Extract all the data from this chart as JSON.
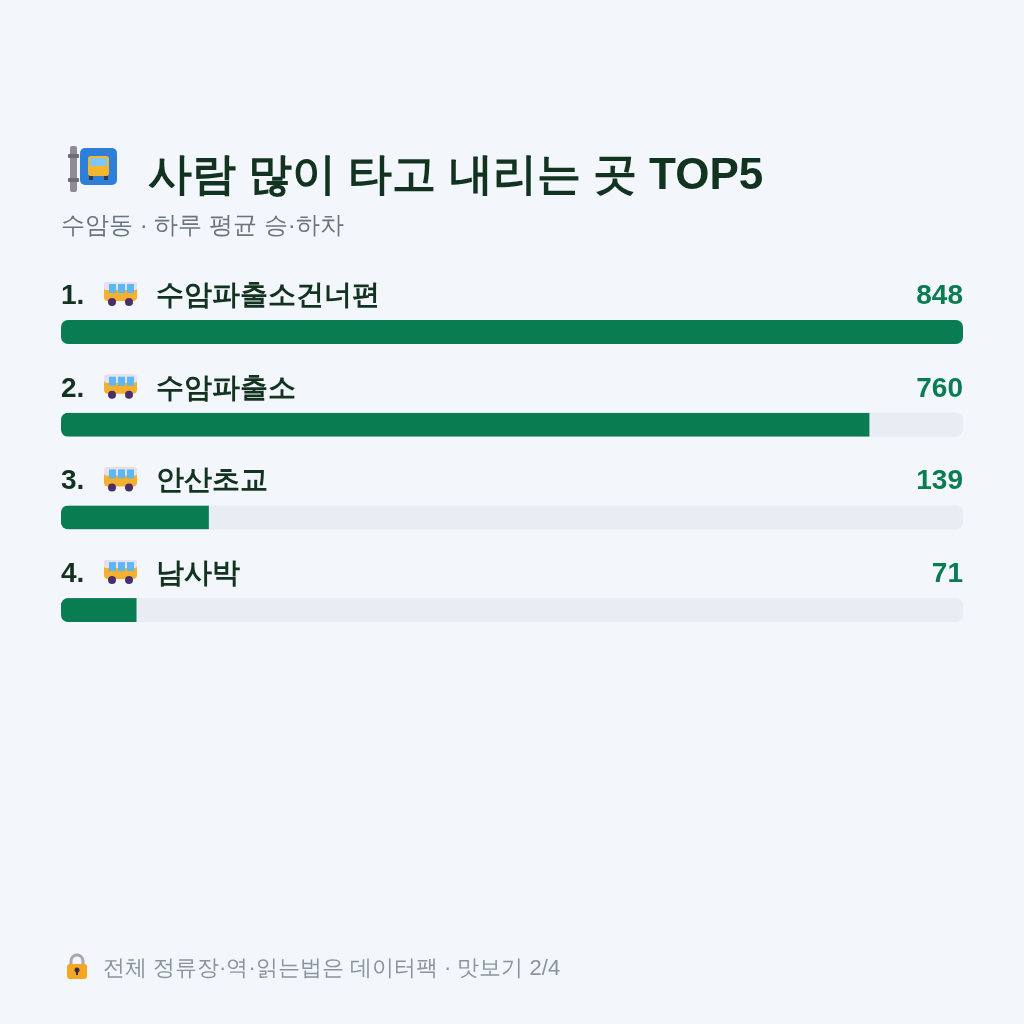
{
  "chart_data": {
    "type": "bar",
    "orientation": "horizontal",
    "title": "사람 많이 타고 내리는 곳 TOP5",
    "subtitle": "수암동 · 하루 평균 승·하차",
    "categories": [
      "1. 수암파출소건너편",
      "2. 수암파출소",
      "3. 안산초교",
      "4. 남사박"
    ],
    "values": [
      848,
      760,
      139,
      71
    ],
    "color": "#0a7c52",
    "data_labels": true,
    "annotations": [
      "전체 정류장·역·읽는법은 데이터팩 · 맛보기 2/4"
    ]
  }
}
